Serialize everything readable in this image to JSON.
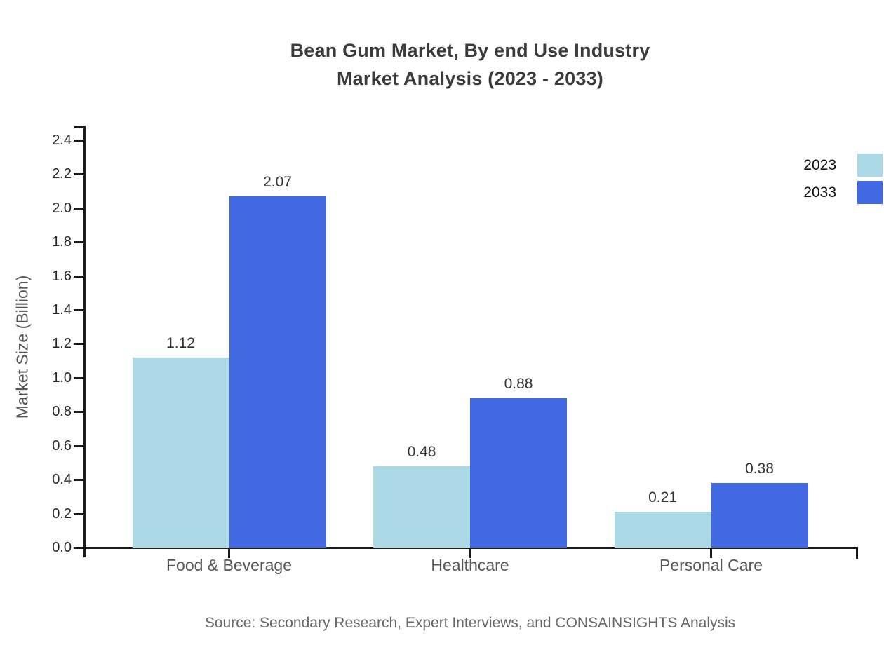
{
  "chart_data": {
    "type": "bar",
    "title": "Bean Gum Market, By end Use Industry Market Analysis (2023 - 2033)",
    "title_lines": [
      "Bean Gum Market, By end Use Industry",
      "Market Analysis (2023 - 2033)"
    ],
    "categories": [
      "Food & Beverage",
      "Healthcare",
      "Personal Care"
    ],
    "series": [
      {
        "name": "2023",
        "color": "#ADD8E6",
        "values": [
          1.12,
          0.48,
          0.21
        ]
      },
      {
        "name": "2033",
        "color": "#4169E1",
        "values": [
          2.07,
          0.88,
          0.38
        ]
      }
    ],
    "xlabel": "",
    "ylabel": "Market Size (Billion)",
    "ylim": [
      0.0,
      2.4
    ],
    "ytick_step": 0.2,
    "ytick_labels": [
      "0.0",
      "0.2",
      "0.4",
      "0.6",
      "0.8",
      "1.0",
      "1.2",
      "1.4",
      "1.6",
      "1.8",
      "2.0",
      "2.2",
      "2.4"
    ],
    "grid": false,
    "legend_position": "top-right",
    "bar_value_labels": [
      "1.12",
      "2.07",
      "0.48",
      "0.88",
      "0.21",
      "0.38"
    ],
    "source_note": "Source: Secondary Research, Expert Interviews, and CONSAINSIGHTS Analysis",
    "colors": {
      "series_2023": "#ADD8E6",
      "series_2033": "#4169E1",
      "axis": "#1a1a1a",
      "title_text": "#3b3b3b",
      "tick_text": "#262626",
      "category_text": "#565656",
      "value_text": "#333333",
      "source_text": "#666666",
      "legend_text": "#111111"
    }
  }
}
